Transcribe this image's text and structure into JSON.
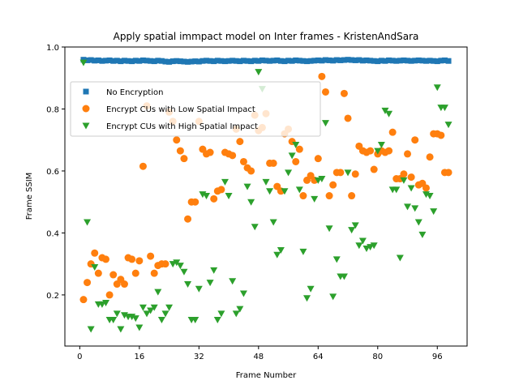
{
  "chart_data": {
    "type": "scatter",
    "title": "Apply spatial immpact model on Inter frames - KristenAndSara",
    "xlabel": "Frame Number",
    "ylabel": "Frame SSIM",
    "xlim": [
      -4,
      104
    ],
    "ylim": [
      0.035,
      1.0
    ],
    "xticks": [
      0,
      16,
      32,
      48,
      64,
      80,
      96
    ],
    "yticks": [
      0.2,
      0.4,
      0.6,
      0.8,
      1.0
    ],
    "grid": false,
    "legend": "top-left",
    "series": [
      {
        "name": "No Encryption",
        "marker": "square",
        "color": "#1f77b4",
        "x": [
          1,
          2,
          3,
          4,
          5,
          6,
          7,
          8,
          9,
          10,
          11,
          12,
          13,
          14,
          15,
          16,
          17,
          18,
          19,
          20,
          21,
          22,
          23,
          24,
          25,
          26,
          27,
          28,
          29,
          30,
          31,
          32,
          33,
          34,
          35,
          36,
          37,
          38,
          39,
          40,
          41,
          42,
          43,
          44,
          45,
          46,
          47,
          48,
          49,
          50,
          51,
          52,
          53,
          54,
          55,
          56,
          57,
          58,
          59,
          60,
          61,
          62,
          63,
          64,
          65,
          66,
          67,
          68,
          69,
          70,
          71,
          72,
          73,
          74,
          75,
          76,
          77,
          78,
          79,
          80,
          81,
          82,
          83,
          84,
          85,
          86,
          87,
          88,
          89,
          90,
          91,
          92,
          93,
          94,
          95,
          96,
          97,
          98,
          99
        ],
        "y": [
          0.959,
          0.957,
          0.958,
          0.956,
          0.957,
          0.955,
          0.956,
          0.957,
          0.955,
          0.956,
          0.954,
          0.956,
          0.955,
          0.954,
          0.956,
          0.955,
          0.957,
          0.956,
          0.955,
          0.954,
          0.956,
          0.955,
          0.953,
          0.952,
          0.954,
          0.955,
          0.954,
          0.953,
          0.952,
          0.953,
          0.954,
          0.953,
          0.955,
          0.956,
          0.955,
          0.954,
          0.956,
          0.955,
          0.954,
          0.955,
          0.956,
          0.955,
          0.954,
          0.956,
          0.955,
          0.954,
          0.956,
          0.955,
          0.957,
          0.956,
          0.955,
          0.956,
          0.957,
          0.955,
          0.954,
          0.956,
          0.955,
          0.957,
          0.956,
          0.955,
          0.954,
          0.955,
          0.956,
          0.957,
          0.956,
          0.958,
          0.957,
          0.956,
          0.958,
          0.957,
          0.958,
          0.959,
          0.958,
          0.957,
          0.958,
          0.956,
          0.957,
          0.956,
          0.955,
          0.954,
          0.956,
          0.955,
          0.957,
          0.956,
          0.955,
          0.956,
          0.957,
          0.956,
          0.955,
          0.956,
          0.957,
          0.956,
          0.955,
          0.956,
          0.955,
          0.954,
          0.956,
          0.957,
          0.955
        ]
      },
      {
        "name": "Encrypt CUs with Low Spatial Impact",
        "marker": "circle",
        "color": "#ff7f0e",
        "x": [
          1,
          2,
          3,
          4,
          5,
          6,
          7,
          8,
          9,
          10,
          11,
          12,
          13,
          14,
          15,
          16,
          17,
          18,
          19,
          20,
          21,
          22,
          23,
          24,
          25,
          26,
          27,
          28,
          29,
          30,
          31,
          32,
          33,
          34,
          35,
          36,
          37,
          38,
          39,
          40,
          41,
          42,
          43,
          44,
          45,
          46,
          47,
          48,
          49,
          50,
          51,
          52,
          53,
          54,
          55,
          56,
          57,
          58,
          59,
          60,
          61,
          62,
          63,
          64,
          65,
          66,
          67,
          68,
          69,
          70,
          71,
          72,
          73,
          74,
          75,
          76,
          77,
          78,
          79,
          80,
          81,
          82,
          83,
          84,
          85,
          86,
          87,
          88,
          89,
          90,
          91,
          92,
          93,
          94,
          95,
          96,
          97,
          98,
          99
        ],
        "y": [
          0.185,
          0.24,
          0.3,
          0.335,
          0.27,
          0.32,
          0.315,
          0.2,
          0.265,
          0.235,
          0.25,
          0.235,
          0.32,
          0.315,
          0.27,
          0.31,
          0.615,
          0.81,
          0.325,
          0.27,
          0.295,
          0.3,
          0.3,
          0.79,
          0.76,
          0.7,
          0.665,
          0.64,
          0.445,
          0.5,
          0.5,
          0.76,
          0.67,
          0.655,
          0.66,
          0.51,
          0.535,
          0.54,
          0.66,
          0.655,
          0.65,
          0.735,
          0.695,
          0.63,
          0.61,
          0.6,
          0.78,
          0.73,
          0.74,
          0.785,
          0.625,
          0.625,
          0.55,
          0.535,
          0.72,
          0.735,
          0.695,
          0.63,
          0.67,
          0.52,
          0.57,
          0.585,
          0.57,
          0.64,
          0.905,
          0.855,
          0.52,
          0.555,
          0.595,
          0.595,
          0.85,
          0.77,
          0.52,
          0.59,
          0.68,
          0.665,
          0.66,
          0.665,
          0.605,
          0.655,
          0.665,
          0.66,
          0.665,
          0.725,
          0.575,
          0.575,
          0.59,
          0.655,
          0.58,
          0.7,
          0.555,
          0.56,
          0.545,
          0.645,
          0.72,
          0.72,
          0.715,
          0.595,
          0.595
        ]
      },
      {
        "name": "Encrypt CUs with High Spatial Impact",
        "marker": "triangle-down",
        "color": "#2ca02c",
        "x": [
          1,
          2,
          3,
          4,
          5,
          6,
          7,
          8,
          9,
          10,
          11,
          12,
          13,
          14,
          15,
          16,
          17,
          18,
          19,
          20,
          21,
          22,
          23,
          24,
          25,
          26,
          27,
          28,
          29,
          30,
          31,
          32,
          33,
          34,
          35,
          36,
          37,
          38,
          39,
          40,
          41,
          42,
          43,
          44,
          45,
          46,
          47,
          48,
          49,
          50,
          51,
          52,
          53,
          54,
          55,
          56,
          57,
          58,
          59,
          60,
          61,
          62,
          63,
          64,
          65,
          66,
          67,
          68,
          69,
          70,
          71,
          72,
          73,
          74,
          75,
          76,
          77,
          78,
          79,
          80,
          81,
          82,
          83,
          84,
          85,
          86,
          87,
          88,
          89,
          90,
          91,
          92,
          93,
          94,
          95,
          96,
          97,
          98,
          99
        ],
        "y": [
          0.95,
          0.435,
          0.09,
          0.29,
          0.17,
          0.17,
          0.175,
          0.12,
          0.12,
          0.14,
          0.09,
          0.135,
          0.13,
          0.13,
          0.125,
          0.095,
          0.16,
          0.14,
          0.15,
          0.16,
          0.21,
          0.12,
          0.14,
          0.16,
          0.3,
          0.305,
          0.295,
          0.275,
          0.235,
          0.12,
          0.12,
          0.22,
          0.525,
          0.52,
          0.24,
          0.28,
          0.12,
          0.14,
          0.565,
          0.52,
          0.245,
          0.14,
          0.155,
          0.205,
          0.55,
          0.5,
          0.42,
          0.92,
          0.865,
          0.565,
          0.535,
          0.435,
          0.33,
          0.345,
          0.535,
          0.595,
          0.65,
          0.685,
          0.54,
          0.34,
          0.19,
          0.22,
          0.51,
          0.57,
          0.575,
          0.755,
          0.415,
          0.195,
          0.315,
          0.26,
          0.26,
          0.595,
          0.41,
          0.425,
          0.36,
          0.375,
          0.35,
          0.355,
          0.36,
          0.665,
          0.685,
          0.795,
          0.785,
          0.54,
          0.54,
          0.32,
          0.57,
          0.485,
          0.545,
          0.48,
          0.435,
          0.395,
          0.525,
          0.52,
          0.47,
          0.87,
          0.805,
          0.805,
          0.75
        ]
      }
    ]
  }
}
